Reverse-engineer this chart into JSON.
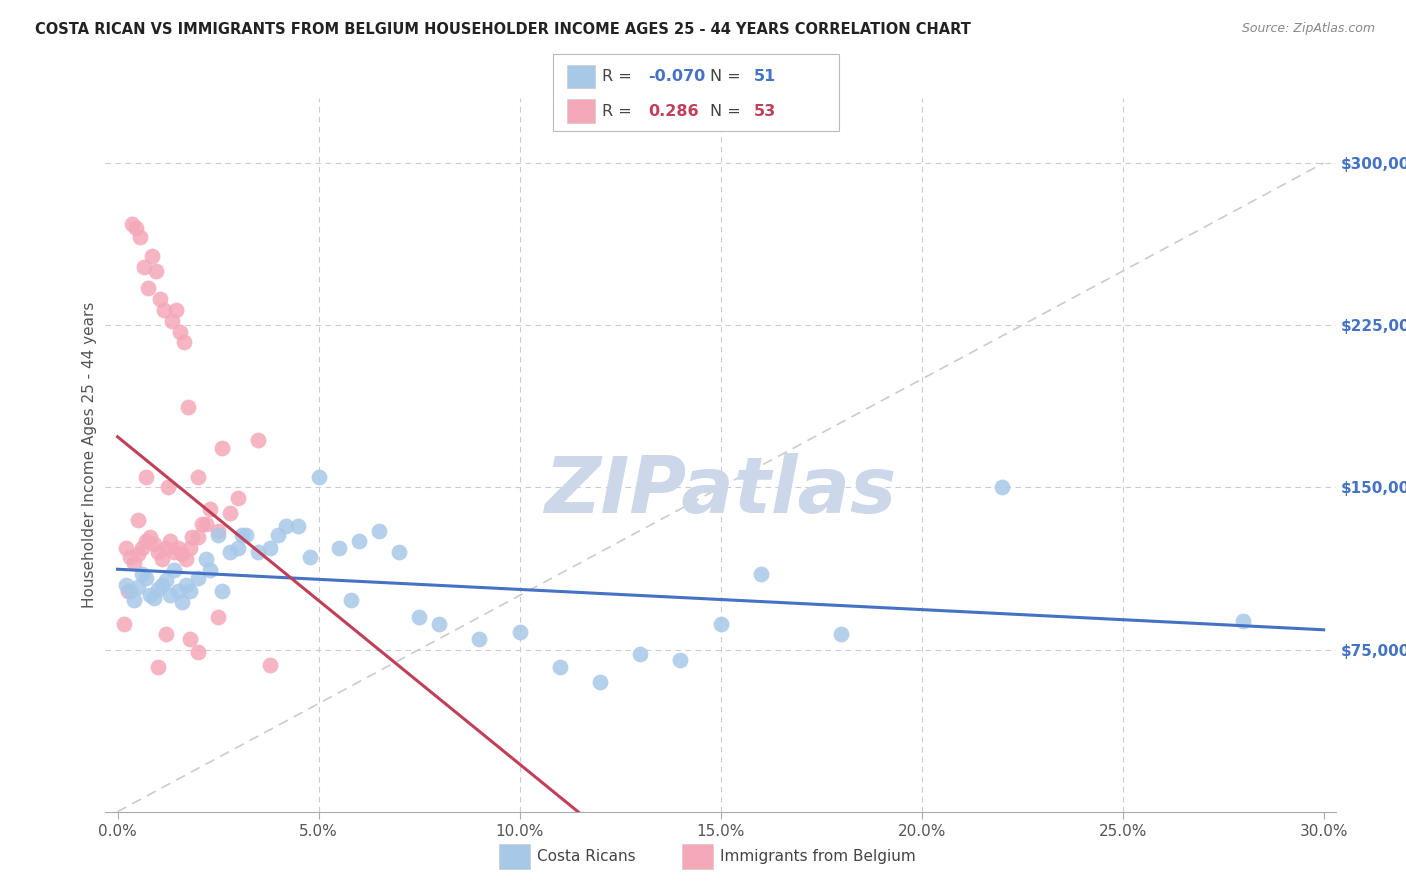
{
  "title": "COSTA RICAN VS IMMIGRANTS FROM BELGIUM HOUSEHOLDER INCOME AGES 25 - 44 YEARS CORRELATION CHART",
  "source": "Source: ZipAtlas.com",
  "xlabel_ticks": [
    "0.0%",
    "5.0%",
    "10.0%",
    "15.0%",
    "20.0%",
    "25.0%",
    "30.0%"
  ],
  "xlabel_vals": [
    0.0,
    5.0,
    10.0,
    15.0,
    20.0,
    25.0,
    30.0
  ],
  "ylabel": "Householder Income Ages 25 - 44 years",
  "ylabel_ticks": [
    "$75,000",
    "$150,000",
    "$225,000",
    "$300,000"
  ],
  "ylabel_vals": [
    75000,
    150000,
    225000,
    300000
  ],
  "ymin": 0,
  "ymax": 330000,
  "xmin": -0.3,
  "xmax": 30.3,
  "legend_blue_r": "-0.070",
  "legend_blue_n": "51",
  "legend_pink_r": "0.286",
  "legend_pink_n": "53",
  "blue_color": "#a8c8e8",
  "pink_color": "#f4a8b8",
  "blue_line_color": "#4472c4",
  "pink_line_color": "#c0405a",
  "diag_line_color": "#cccccc",
  "watermark_color": "#ccd8ea",
  "bg_color": "#ffffff",
  "blue_scatter_x": [
    0.2,
    0.3,
    0.4,
    0.5,
    0.6,
    0.7,
    0.8,
    0.9,
    1.0,
    1.1,
    1.2,
    1.3,
    1.4,
    1.5,
    1.6,
    1.7,
    1.8,
    2.0,
    2.2,
    2.5,
    2.8,
    3.0,
    3.2,
    3.5,
    4.0,
    4.5,
    5.0,
    5.5,
    6.0,
    6.5,
    7.0,
    7.5,
    8.0,
    9.0,
    10.0,
    11.0,
    12.0,
    13.0,
    14.0,
    15.0,
    16.0,
    18.0,
    22.0,
    2.3,
    2.6,
    3.1,
    3.8,
    4.2,
    4.8,
    5.8,
    28.0
  ],
  "blue_scatter_y": [
    105000,
    102000,
    98000,
    104000,
    110000,
    108000,
    100000,
    99000,
    103000,
    105000,
    107000,
    100000,
    112000,
    102000,
    97000,
    105000,
    102000,
    108000,
    117000,
    128000,
    120000,
    122000,
    128000,
    120000,
    128000,
    132000,
    155000,
    122000,
    125000,
    130000,
    120000,
    90000,
    87000,
    80000,
    83000,
    67000,
    60000,
    73000,
    70000,
    87000,
    110000,
    82000,
    150000,
    112000,
    102000,
    128000,
    122000,
    132000,
    118000,
    98000,
    88000
  ],
  "pink_scatter_x": [
    0.2,
    0.3,
    0.4,
    0.5,
    0.6,
    0.7,
    0.8,
    0.9,
    1.0,
    1.1,
    1.2,
    1.3,
    1.4,
    1.5,
    1.6,
    1.7,
    1.8,
    2.0,
    2.2,
    2.5,
    2.8,
    3.0,
    0.35,
    0.45,
    0.55,
    0.65,
    0.75,
    0.85,
    0.95,
    1.05,
    1.15,
    1.25,
    1.35,
    1.45,
    1.55,
    1.65,
    1.75,
    1.85,
    2.1,
    2.3,
    2.6,
    3.5,
    0.25,
    0.15,
    1.0,
    1.8,
    2.0,
    1.2,
    2.5,
    0.5,
    0.7,
    2.0,
    3.8
  ],
  "pink_scatter_y": [
    122000,
    118000,
    115000,
    119000,
    122000,
    125000,
    127000,
    124000,
    120000,
    117000,
    122000,
    125000,
    120000,
    122000,
    119000,
    117000,
    122000,
    127000,
    133000,
    130000,
    138000,
    145000,
    272000,
    270000,
    266000,
    252000,
    242000,
    257000,
    250000,
    237000,
    232000,
    150000,
    227000,
    232000,
    222000,
    217000,
    187000,
    127000,
    133000,
    140000,
    168000,
    172000,
    102000,
    87000,
    67000,
    80000,
    74000,
    82000,
    90000,
    135000,
    155000,
    155000,
    68000
  ]
}
